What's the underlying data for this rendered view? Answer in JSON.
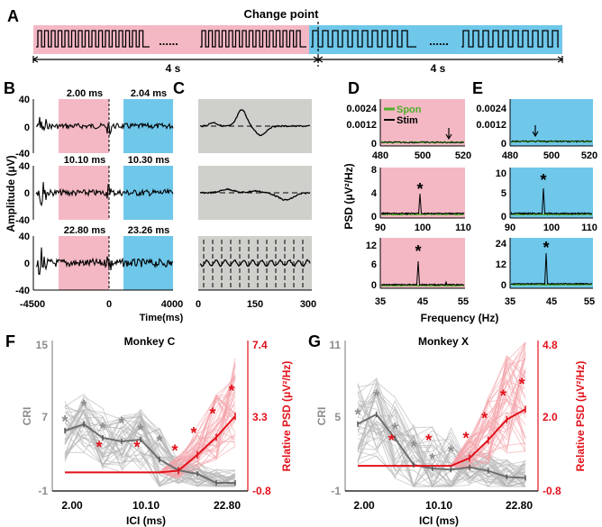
{
  "colors": {
    "pink": "#f4b8c4",
    "blue": "#6fc7ea",
    "gray_bg": "#cfd0cc",
    "red": "#e2101a",
    "gray": "#8c8c8c",
    "green": "#4caf2a"
  },
  "panel_A": {
    "label": "A",
    "change_point_label": "Change point",
    "ellipsis": "......",
    "duration_left": "4 s",
    "duration_right": "4 s"
  },
  "panel_B": {
    "label": "B",
    "ylabel": "Amplitude (μV)",
    "xlabel": "Time(ms)",
    "x_ticks": [
      "-4500",
      "0",
      "4000"
    ],
    "y_ticks": [
      "40",
      "0",
      "-40"
    ],
    "rows": [
      {
        "left_ici": "2.00 ms",
        "right_ici": "2.04 ms"
      },
      {
        "left_ici": "10.10 ms",
        "right_ici": "10.30 ms"
      },
      {
        "left_ici": "22.80 ms",
        "right_ici": "23.26 ms"
      }
    ]
  },
  "panel_C": {
    "label": "C",
    "xlabel": "Time(ms)",
    "x_ticks": [
      "0",
      "150",
      "300"
    ]
  },
  "panel_D": {
    "label": "D",
    "ylabel": "PSD (μV²/Hz)",
    "legend": [
      "Spon",
      "Stim"
    ],
    "rows": [
      {
        "y_ticks": [
          "0.0024",
          "0.0012",
          "0"
        ],
        "x_ticks": [
          "480",
          "500",
          "520"
        ],
        "marker": "arrow"
      },
      {
        "y_ticks": [
          "8",
          "4",
          "0"
        ],
        "x_ticks": [
          "90",
          "100",
          "110"
        ],
        "marker": "*"
      },
      {
        "y_ticks": [
          "12",
          "6",
          "0"
        ],
        "x_ticks": [
          "35",
          "45",
          "55"
        ],
        "marker": "*"
      }
    ]
  },
  "panel_E": {
    "label": "E",
    "rows": [
      {
        "y_ticks": [
          "0.0024",
          "0.0012",
          "0"
        ],
        "x_ticks": [
          "480",
          "500",
          "520"
        ],
        "marker": "arrow"
      },
      {
        "y_ticks": [
          "10",
          "5",
          "0"
        ],
        "x_ticks": [
          "90",
          "100",
          "110"
        ],
        "marker": "*"
      },
      {
        "y_ticks": [
          "24",
          "12",
          "0"
        ],
        "x_ticks": [
          "35",
          "45",
          "55"
        ],
        "marker": "*"
      }
    ]
  },
  "frequency_label": "Frequency (Hz)",
  "chart_data": [
    {
      "type": "line",
      "panel": "F",
      "title": "Monkey C",
      "xlabel": "ICI (ms)",
      "ylabel_left": "CRI",
      "ylabel_right": "Relative PSD (μV²/Hz)",
      "x_ticks": [
        "2.00",
        "10.10",
        "22.80"
      ],
      "x_index": [
        0,
        1,
        2,
        3,
        4,
        5,
        6,
        7,
        8,
        9
      ],
      "left_ylim": [
        -1,
        15
      ],
      "left_ticks": [
        "15",
        "7",
        "-1"
      ],
      "right_ylim": [
        -0.8,
        7.4
      ],
      "right_ticks": [
        "7.4",
        "3.3",
        "-0.8"
      ],
      "series": [
        {
          "name": "CRI",
          "axis": "left",
          "values": [
            5.2,
            5.9,
            4.4,
            4.0,
            4.2,
            2.0,
            0.8,
            0.4,
            -0.6,
            -0.6
          ]
        },
        {
          "name": "Relative PSD",
          "axis": "right",
          "values": [
            0.0,
            0.0,
            0.0,
            0.0,
            0.0,
            0.0,
            0.1,
            1.0,
            2.0,
            3.2
          ]
        }
      ],
      "star_labels": [
        "*",
        "*",
        "*",
        "*",
        "*",
        "*",
        "*",
        "*",
        "*",
        "*",
        "*",
        "*"
      ]
    },
    {
      "type": "line",
      "panel": "G",
      "title": "Monkey X",
      "xlabel": "ICI (ms)",
      "ylabel_left": "CRI",
      "ylabel_right": "Relative PSD (μV²/Hz)",
      "x_ticks": [
        "2.00",
        "10.10",
        "22.80"
      ],
      "x_index": [
        0,
        1,
        2,
        3,
        4,
        5,
        6,
        7,
        8,
        9
      ],
      "left_ylim": [
        -1,
        11
      ],
      "left_ticks": [
        "11",
        "5",
        "-1"
      ],
      "right_ylim": [
        -0.8,
        4.8
      ],
      "right_ticks": [
        "4.8",
        "2.0",
        "-0.8"
      ],
      "series": [
        {
          "name": "CRI",
          "axis": "left",
          "values": [
            4.2,
            5.0,
            3.0,
            0.8,
            0.5,
            0.4,
            0.6,
            0.3,
            -0.2,
            -0.3
          ]
        },
        {
          "name": "Relative PSD",
          "axis": "right",
          "values": [
            0.0,
            0.0,
            0.0,
            0.0,
            0.0,
            0.0,
            0.3,
            1.0,
            1.8,
            2.2
          ]
        }
      ],
      "star_labels": [
        "*",
        "*",
        "*",
        "*",
        "*",
        "*",
        "*",
        "*",
        "*",
        "*",
        "*",
        "*"
      ]
    }
  ]
}
